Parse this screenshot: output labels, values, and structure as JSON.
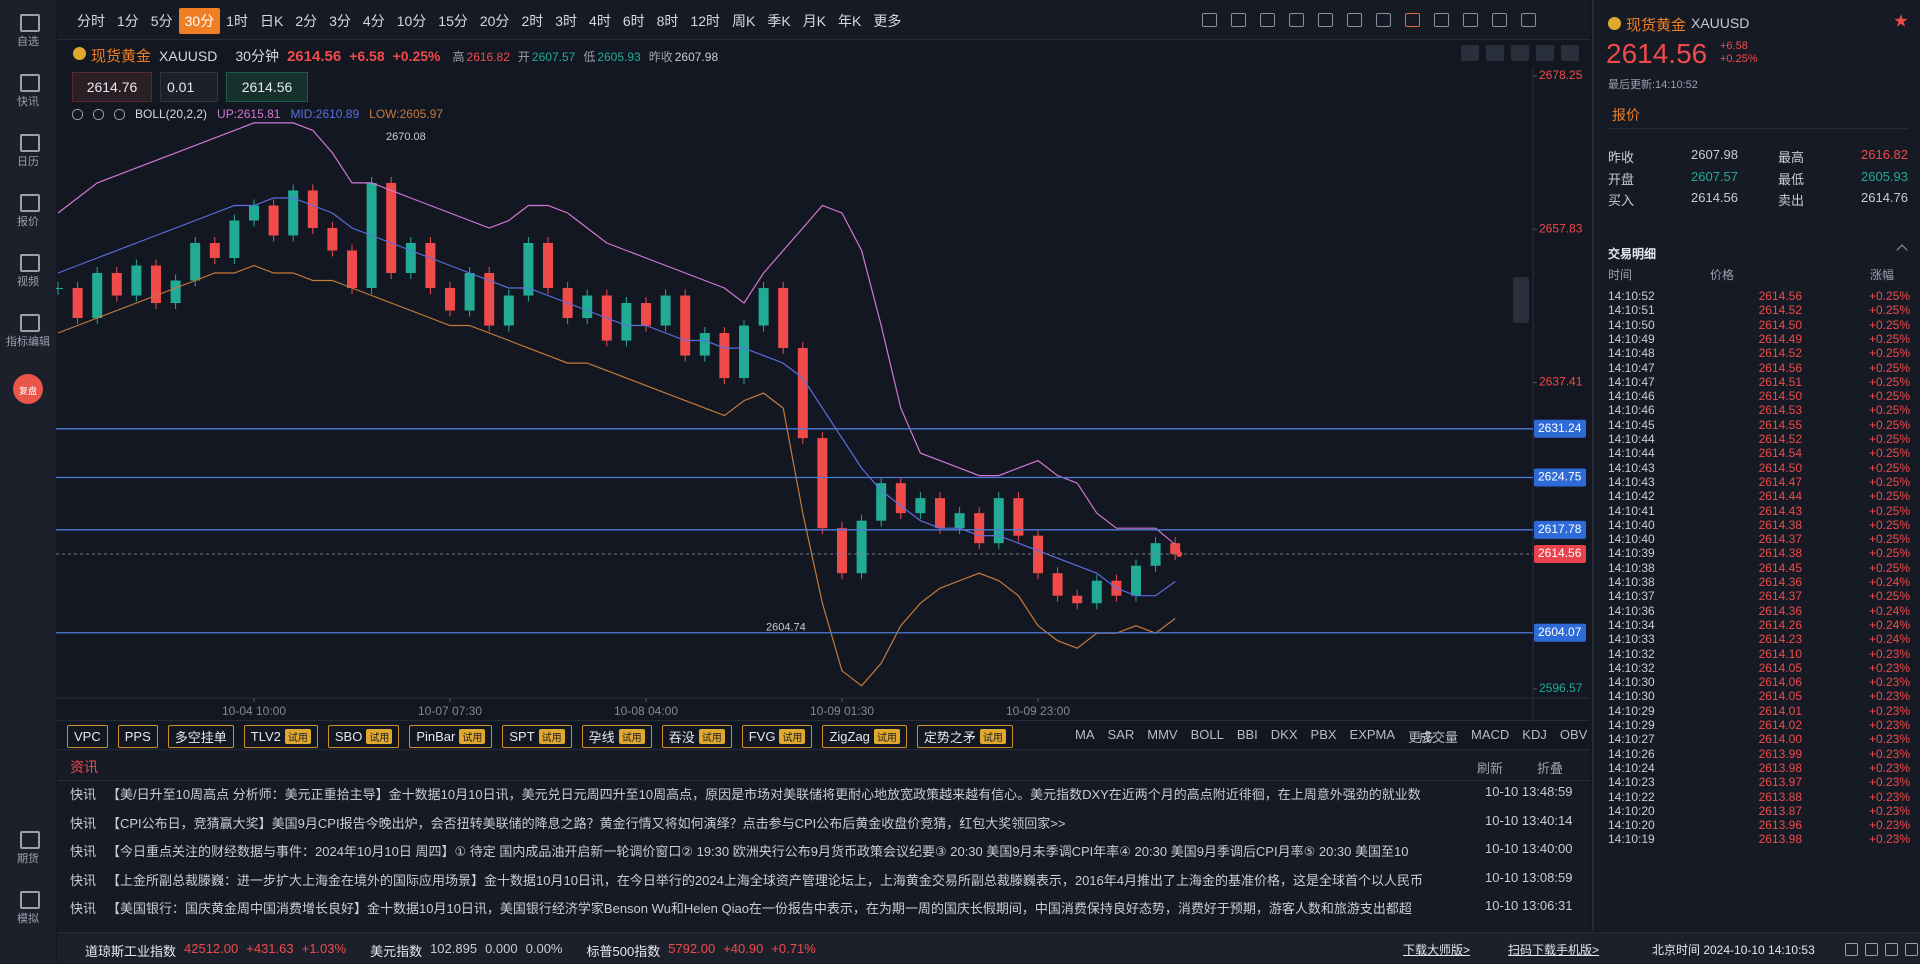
{
  "sidebar": [
    "自选",
    "快讯",
    "日历",
    "报价",
    "视频",
    "指标编辑",
    "复盘",
    "期货",
    "模拟"
  ],
  "toolbar": {
    "timeframes": [
      "分时",
      "1分",
      "5分",
      "30分",
      "1时",
      "日K",
      "2分",
      "3分",
      "4分",
      "10分",
      "15分",
      "20分",
      "2时",
      "3时",
      "4时",
      "6时",
      "8时",
      "12时",
      "周K",
      "季K",
      "月K",
      "年K"
    ],
    "active": "30分",
    "more": "更多"
  },
  "symbol": {
    "name": "现货黄金",
    "code": "XAUUSD",
    "period": "30分钟",
    "price": "2614.56",
    "change": "+6.58",
    "pct": "+0.25%",
    "high_label": "高",
    "high": "2616.82",
    "open_label": "开",
    "open": "2607.57",
    "low_label": "低",
    "low": "2605.93",
    "prev_label": "昨收",
    "prev": "2607.98"
  },
  "order": {
    "sell": "2614.76",
    "qty": "0.01",
    "buy": "2614.56"
  },
  "chart_data": {
    "type": "candlestick",
    "indicator": "BOLL(20,2,2)",
    "up_label": "UP:2615.81",
    "mid_label": "MID:2610.89",
    "low_label": "LOW:2605.97",
    "categories": [
      null,
      null,
      null,
      null,
      null,
      null,
      null,
      null,
      null,
      null,
      "10-04 10:00",
      null,
      null,
      null,
      null,
      null,
      null,
      null,
      null,
      null,
      "10-07 07:30",
      null,
      null,
      null,
      null,
      null,
      null,
      null,
      null,
      null,
      "10-08 04:00",
      null,
      null,
      null,
      null,
      null,
      null,
      null,
      null,
      null,
      "10-09 01:30",
      null,
      null,
      null,
      null,
      null,
      null,
      null,
      null,
      null,
      "10-09 23:00",
      null,
      null,
      null,
      null,
      null,
      null,
      null
    ],
    "series": [
      {
        "name": "close",
        "values": [
          2650,
          2646,
          2652,
          2649,
          2653,
          2648,
          2651,
          2656,
          2654,
          2659,
          2661,
          2657,
          2663,
          2658,
          2655,
          2650,
          2664,
          2652,
          2656,
          2650,
          2647,
          2652,
          2645,
          2649,
          2656,
          2650,
          2646,
          2649,
          2643,
          2648,
          2645,
          2649,
          2641,
          2644,
          2638,
          2645,
          2650,
          2642,
          2630,
          2618,
          2612,
          2619,
          2624,
          2620,
          2622,
          2618,
          2620,
          2616,
          2622,
          2617,
          2612,
          2609,
          2608,
          2611,
          2609,
          2613,
          2616,
          2614.56
        ]
      },
      {
        "name": "UP",
        "color": "#d277d2",
        "values": [
          2660,
          2662,
          2664,
          2665,
          2666,
          2667,
          2668,
          2669,
          2670,
          2671,
          2672,
          2672,
          2672,
          2671,
          2668,
          2664,
          2664,
          2663,
          2662,
          2661,
          2660,
          2659,
          2658,
          2659,
          2661,
          2661,
          2660,
          2658,
          2656,
          2655,
          2654,
          2653,
          2652,
          2651,
          2650,
          2648,
          2652,
          2655,
          2658,
          2661,
          2660,
          2655,
          2645,
          2634,
          2628,
          2627,
          2626,
          2625,
          2625,
          2626,
          2627,
          2625,
          2624,
          2620,
          2618,
          2618,
          2618,
          2615.81
        ]
      },
      {
        "name": "MID",
        "color": "#5b6fe0",
        "values": [
          2652,
          2653,
          2654,
          2655,
          2656,
          2657,
          2658,
          2659,
          2660,
          2661,
          2661,
          2662,
          2662,
          2661,
          2660,
          2658,
          2657,
          2656,
          2655,
          2654,
          2653,
          2652,
          2651,
          2650,
          2650,
          2649,
          2648,
          2647,
          2646,
          2645,
          2645,
          2644,
          2643,
          2643,
          2642,
          2642,
          2641,
          2640,
          2638,
          2634,
          2630,
          2626,
          2623,
          2621,
          2619,
          2618,
          2618,
          2617,
          2617,
          2616,
          2615,
          2614,
          2613,
          2612,
          2610,
          2609,
          2609,
          2610.89
        ]
      },
      {
        "name": "LOW",
        "color": "#c57a3a",
        "values": [
          2644,
          2645,
          2646,
          2647,
          2648,
          2649,
          2650,
          2651,
          2652,
          2652,
          2653,
          2652,
          2652,
          2651,
          2651,
          2650,
          2649,
          2648,
          2647,
          2646,
          2645,
          2645,
          2644,
          2643,
          2642,
          2641,
          2640,
          2640,
          2639,
          2638,
          2637,
          2636,
          2635,
          2634,
          2633,
          2635,
          2636,
          2634,
          2620,
          2608,
          2599,
          2597,
          2600,
          2605,
          2608,
          2610,
          2611,
          2612,
          2611,
          2609,
          2605,
          2603,
          2602,
          2604,
          2604,
          2605,
          2604,
          2605.97
        ]
      }
    ],
    "up_color": "#22ab94",
    "down_color": "#f04a4a",
    "ylim": [
      2596.57,
      2678.25
    ],
    "yticks": [
      2678.25,
      2657.83,
      2637.41,
      2596.57
    ],
    "levels": [
      2631.24,
      2624.75,
      2617.78,
      2604.07
    ],
    "current": 2614.56,
    "annotations": [
      {
        "value": 2670.08,
        "label": "2670.08"
      },
      {
        "value": 2604.74,
        "label": "2604.74"
      }
    ]
  },
  "indicators": {
    "buttons": [
      {
        "name": "VPC"
      },
      {
        "name": "PPS"
      },
      {
        "name": "多空挂单"
      },
      {
        "name": "TLV2",
        "badge": "试用"
      },
      {
        "name": "SBO",
        "badge": "试用"
      },
      {
        "name": "PinBar",
        "badge": "试用"
      },
      {
        "name": "SPT",
        "badge": "试用"
      },
      {
        "name": "孕线",
        "badge": "试用"
      },
      {
        "name": "吞没",
        "badge": "试用"
      },
      {
        "name": "FVG",
        "badge": "试用"
      },
      {
        "name": "ZigZag",
        "badge": "试用"
      },
      {
        "name": "定势之矛",
        "badge": "试用"
      }
    ],
    "main": [
      "MA",
      "SAR",
      "MMV",
      "BOLL",
      "BBI",
      "DKX",
      "PBX",
      "EXPMA",
      "更多"
    ],
    "sub": [
      "成交量",
      "MACD",
      "KDJ",
      "OBV"
    ]
  },
  "news": {
    "title": "资讯",
    "refresh": "刷新",
    "fold": "折叠",
    "items": [
      {
        "tag": "快讯",
        "text": "【美/日升至10周高点 分析师：美元正重拾主导】金十数据10月10日讯，美元兑日元周四升至10周高点，原因是市场对美联储将更耐心地放宽政策越来越有信心。美元指数DXY在近两个月的高点附近徘徊，在上周意外强劲的就业数",
        "time": "10-10 13:48:59"
      },
      {
        "tag": "快讯",
        "text": "【CPI公布日，竞猜赢大奖】美国9月CPI报告今晚出炉，会否扭转美联储的降息之路？黄金行情又将如何演绎？点击参与CPI公布后黄金收盘价竞猜，红包大奖领回家>>",
        "time": "10-10 13:40:14"
      },
      {
        "tag": "快讯",
        "text": "【今日重点关注的财经数据与事件：2024年10月10日 周四】① 待定 国内成品油开启新一轮调价窗口② 19:30 欧洲央行公布9月货币政策会议纪要③ 20:30 美国9月未季调CPI年率④ 20:30 美国9月季调后CPI月率⑤ 20:30 美国至10",
        "time": "10-10 13:40:00"
      },
      {
        "tag": "快讯",
        "text": "【上金所副总裁滕巍：进一步扩大上海金在境外的国际应用场景】金十数据10月10日讯，在今日举行的2024上海全球资产管理论坛上，上海黄金交易所副总裁滕巍表示，2016年4月推出了上海金的基准价格，这是全球首个以人民币",
        "time": "10-10 13:08:59"
      },
      {
        "tag": "快讯",
        "text": "【美国银行：国庆黄金周中国消费增长良好】金十数据10月10日讯，美国银行经济学家Benson Wu和Helen Qiao在一份报告中表示，在为期一周的国庆长假期间，中国消费保持良好态势，消费好于预期，游客人数和旅游支出都超",
        "time": "10-10 13:06:31"
      }
    ]
  },
  "ticker": [
    {
      "name": "道琼斯工业指数",
      "price": "42512.00",
      "change": "+431.63",
      "pct": "+1.03%"
    },
    {
      "name": "美元指数",
      "price": "102.895",
      "change": "0.000",
      "pct": "0.00%"
    },
    {
      "name": "标普500指数",
      "price": "5792.00",
      "change": "+40.90",
      "pct": "+0.71%"
    }
  ],
  "footer": {
    "download": "下载大师版>",
    "mobile": "扫码下载手机版>",
    "clock": "北京时间 2024-10-10 14:10:53"
  },
  "quote_panel": {
    "name": "现货黄金",
    "code": "XAUUSD",
    "price": "2614.56",
    "change": "+6.58",
    "pct": "+0.25%",
    "updated": "最后更新:14:10:52",
    "tab": "报价",
    "grid": [
      [
        "昨收",
        "2607.98",
        "最高",
        "2616.82"
      ],
      [
        "开盘",
        "2607.57",
        "最低",
        "2605.93"
      ],
      [
        "买入",
        "2614.56",
        "卖出",
        "2614.76"
      ]
    ],
    "trades_title": "交易明细",
    "trades_head": [
      "时间",
      "价格",
      "涨幅"
    ],
    "trades": [
      [
        "14:10:52",
        "2614.56",
        "+0.25%"
      ],
      [
        "14:10:51",
        "2614.52",
        "+0.25%"
      ],
      [
        "14:10:50",
        "2614.50",
        "+0.25%"
      ],
      [
        "14:10:49",
        "2614.49",
        "+0.25%"
      ],
      [
        "14:10:48",
        "2614.52",
        "+0.25%"
      ],
      [
        "14:10:47",
        "2614.56",
        "+0.25%"
      ],
      [
        "14:10:47",
        "2614.51",
        "+0.25%"
      ],
      [
        "14:10:46",
        "2614.50",
        "+0.25%"
      ],
      [
        "14:10:46",
        "2614.53",
        "+0.25%"
      ],
      [
        "14:10:45",
        "2614.55",
        "+0.25%"
      ],
      [
        "14:10:44",
        "2614.52",
        "+0.25%"
      ],
      [
        "14:10:44",
        "2614.54",
        "+0.25%"
      ],
      [
        "14:10:43",
        "2614.50",
        "+0.25%"
      ],
      [
        "14:10:43",
        "2614.47",
        "+0.25%"
      ],
      [
        "14:10:42",
        "2614.44",
        "+0.25%"
      ],
      [
        "14:10:41",
        "2614.43",
        "+0.25%"
      ],
      [
        "14:10:40",
        "2614.38",
        "+0.25%"
      ],
      [
        "14:10:40",
        "2614.37",
        "+0.25%"
      ],
      [
        "14:10:39",
        "2614.38",
        "+0.25%"
      ],
      [
        "14:10:38",
        "2614.45",
        "+0.25%"
      ],
      [
        "14:10:38",
        "2614.36",
        "+0.24%"
      ],
      [
        "14:10:37",
        "2614.37",
        "+0.25%"
      ],
      [
        "14:10:36",
        "2614.36",
        "+0.24%"
      ],
      [
        "14:10:34",
        "2614.26",
        "+0.24%"
      ],
      [
        "14:10:33",
        "2614.23",
        "+0.24%"
      ],
      [
        "14:10:32",
        "2614.10",
        "+0.23%"
      ],
      [
        "14:10:32",
        "2614.05",
        "+0.23%"
      ],
      [
        "14:10:30",
        "2614.06",
        "+0.23%"
      ],
      [
        "14:10:30",
        "2614.05",
        "+0.23%"
      ],
      [
        "14:10:29",
        "2614.01",
        "+0.23%"
      ],
      [
        "14:10:29",
        "2614.02",
        "+0.23%"
      ],
      [
        "14:10:27",
        "2614.00",
        "+0.23%"
      ],
      [
        "14:10:26",
        "2613.99",
        "+0.23%"
      ],
      [
        "14:10:24",
        "2613.98",
        "+0.23%"
      ],
      [
        "14:10:23",
        "2613.97",
        "+0.23%"
      ],
      [
        "14:10:22",
        "2613.88",
        "+0.23%"
      ],
      [
        "14:10:20",
        "2613.87",
        "+0.23%"
      ],
      [
        "14:10:20",
        "2613.96",
        "+0.23%"
      ],
      [
        "14:10:19",
        "2613.98",
        "+0.23%"
      ]
    ]
  }
}
